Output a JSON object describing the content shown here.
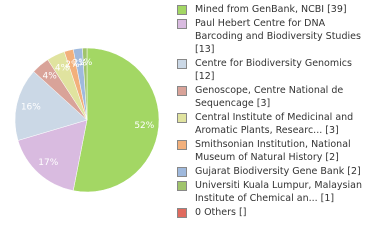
{
  "chart_data": {
    "type": "pie",
    "categories": [
      "Mined from GenBank, NCBI [39]",
      "Paul Hebert Centre for DNA Barcoding and Biodiversity Studies [13]",
      "Centre for Biodiversity Genomics [12]",
      "Genoscope, Centre National de Sequencage [3]",
      "Central Institute of Medicinal and Aromatic Plants, Researc... [3]",
      "Smithsonian Institution, National Museum of Natural History [2]",
      "Gujarat Biodiversity Gene Bank [2]",
      "Universiti Kuala Lumpur, Malaysian Institute of Chemical an... [1]",
      "0 Others []"
    ],
    "values": [
      52,
      17,
      16,
      4,
      4,
      2,
      2,
      1,
      0
    ],
    "value_labels": [
      "52%",
      "17%",
      "16%",
      "4%",
      "4%",
      "2%",
      "2%",
      "1%",
      null
    ],
    "colors": [
      "#a3d764",
      "#d9bbe0",
      "#cbd8e6",
      "#d9a399",
      "#e0e39f",
      "#f2b07c",
      "#9fb9dd",
      "#a0c46c",
      "#e06a5e"
    ]
  }
}
